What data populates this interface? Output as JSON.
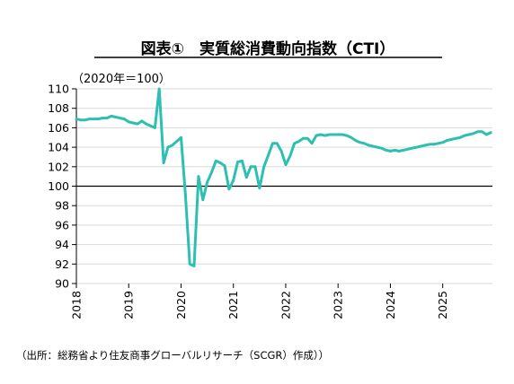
{
  "title": "図表①　実質総消費動向指数（CTI）",
  "source": "（出所：総務省より住友商事グローバルリサーチ（SCGR）作成））",
  "colors": {
    "line": "#2ebfb3",
    "axis": "#000000",
    "grid": "#d9d9d9"
  },
  "chart_data": {
    "type": "line",
    "title": "図表①　実質総消費動向指数（CTI）",
    "unit_label": "（2020年＝100）",
    "xlabel": "",
    "ylabel": "",
    "xlim": [
      2018.0,
      2025.95
    ],
    "ylim": [
      90,
      110
    ],
    "yticks": [
      90,
      92,
      94,
      96,
      98,
      100,
      102,
      104,
      106,
      108,
      110
    ],
    "xticks": [
      "2018",
      "2019",
      "2020",
      "2021",
      "2022",
      "2023",
      "2024",
      "2025"
    ],
    "grid": true,
    "baseline": 100,
    "series": [
      {
        "x": [
          2018.0,
          2018.083,
          2018.167,
          2018.25,
          2018.333,
          2018.417,
          2018.5,
          2018.583,
          2018.667,
          2018.75,
          2018.833,
          2018.917,
          2019.0,
          2019.083,
          2019.167,
          2019.25,
          2019.333,
          2019.417,
          2019.5,
          2019.583,
          2019.667,
          2019.75,
          2019.833,
          2019.917,
          2020.0,
          2020.083,
          2020.167,
          2020.25,
          2020.333,
          2020.417,
          2020.5,
          2020.583,
          2020.667,
          2020.75,
          2020.833,
          2020.917,
          2021.0,
          2021.083,
          2021.167,
          2021.25,
          2021.333,
          2021.417,
          2021.5,
          2021.583,
          2021.667,
          2021.75,
          2021.833,
          2021.917,
          2022.0,
          2022.083,
          2022.167,
          2022.25,
          2022.333,
          2022.417,
          2022.5,
          2022.583,
          2022.667,
          2022.75,
          2022.833,
          2022.917,
          2023.0,
          2023.083,
          2023.167,
          2023.25,
          2023.333,
          2023.417,
          2023.5,
          2023.583,
          2023.667,
          2023.75,
          2023.833,
          2023.917,
          2024.0,
          2024.083,
          2024.167,
          2024.25,
          2024.333,
          2024.417,
          2024.5,
          2024.583,
          2024.667,
          2024.75,
          2024.833,
          2024.917,
          2025.0,
          2025.083,
          2025.167,
          2025.25,
          2025.333,
          2025.417,
          2025.5,
          2025.583,
          2025.667,
          2025.75,
          2025.833,
          2025.917
        ],
        "values": [
          106.9,
          106.8,
          106.8,
          106.9,
          106.9,
          106.9,
          107.0,
          107.0,
          107.2,
          107.1,
          107.0,
          106.9,
          106.6,
          106.5,
          106.4,
          106.7,
          106.4,
          106.2,
          106.0,
          110.0,
          102.4,
          104.0,
          104.2,
          104.6,
          105.0,
          99.2,
          92.0,
          91.8,
          101.0,
          98.6,
          100.4,
          101.4,
          102.6,
          102.4,
          102.1,
          99.7,
          100.6,
          102.5,
          102.6,
          100.9,
          102.0,
          102.0,
          99.8,
          102.0,
          103.2,
          104.4,
          104.4,
          103.6,
          102.2,
          103.1,
          104.4,
          104.6,
          104.9,
          104.9,
          104.4,
          105.2,
          105.3,
          105.2,
          105.3,
          105.3,
          105.3,
          105.3,
          105.2,
          105.0,
          104.7,
          104.5,
          104.4,
          104.2,
          104.1,
          104.0,
          103.9,
          103.7,
          103.6,
          103.7,
          103.6,
          103.7,
          103.8,
          103.9,
          104.0,
          104.1,
          104.2,
          104.3,
          104.3,
          104.4,
          104.5,
          104.7,
          104.8,
          104.9,
          105.0,
          105.2,
          105.3,
          105.4,
          105.6,
          105.6,
          105.3,
          105.5
        ]
      }
    ]
  }
}
